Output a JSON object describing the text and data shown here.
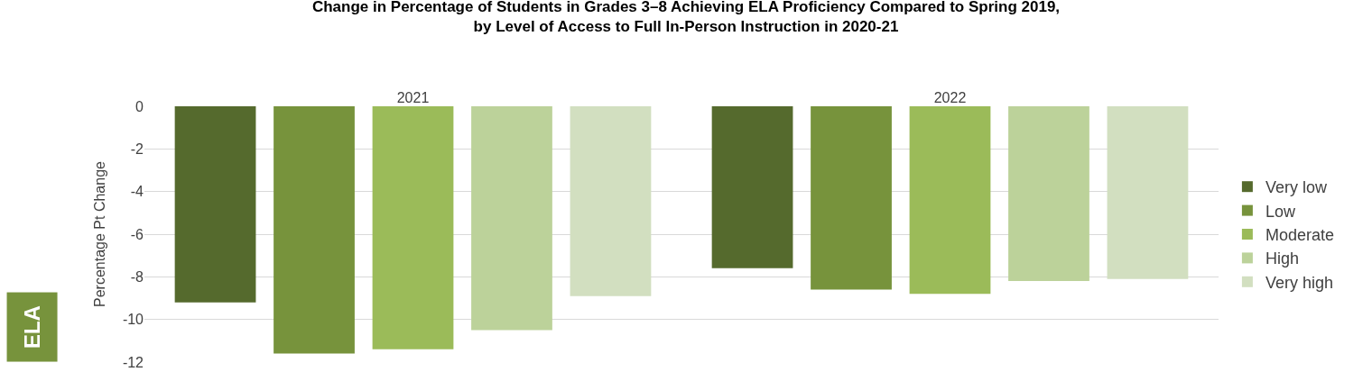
{
  "chart_data": {
    "type": "bar",
    "title": "Change in Percentage of Students in Grades 3–8 Achieving ELA Proficiency Compared to Spring 2019,\nby Level of Access to Full In-Person Instruction in 2020-21",
    "categories": [
      "2021",
      "2022"
    ],
    "series": [
      {
        "name": "Very low",
        "color": "#556a2d",
        "values": [
          -9.2,
          -7.6
        ]
      },
      {
        "name": "Low",
        "color": "#77933c",
        "values": [
          -11.6,
          -8.6
        ]
      },
      {
        "name": "Moderate",
        "color": "#9bbb59",
        "values": [
          -11.4,
          -8.8
        ]
      },
      {
        "name": "High",
        "color": "#bcd29a",
        "values": [
          -10.5,
          -8.2
        ]
      },
      {
        "name": "Very high",
        "color": "#d2dfc0",
        "values": [
          -8.9,
          -8.1
        ]
      }
    ],
    "ylabel": "Percentage Pt Change",
    "ylim": [
      -12,
      0
    ],
    "yticks": [
      -12,
      -10,
      -8,
      -6,
      -4,
      -2,
      0
    ],
    "grid": "y",
    "legend": "right",
    "annotations": [
      "ELA"
    ]
  }
}
